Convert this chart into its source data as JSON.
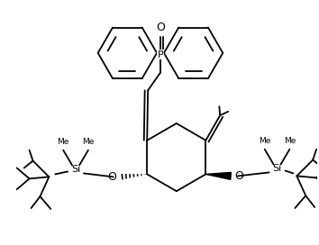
{
  "bg_color": "#ffffff",
  "line_color": "#000000",
  "lw": 1.3,
  "figsize": [
    3.54,
    2.72
  ],
  "dpi": 100,
  "P_label": "P",
  "O_label": "O",
  "Si_label": "Si",
  "ring_r": 33,
  "cyc_r": 38
}
